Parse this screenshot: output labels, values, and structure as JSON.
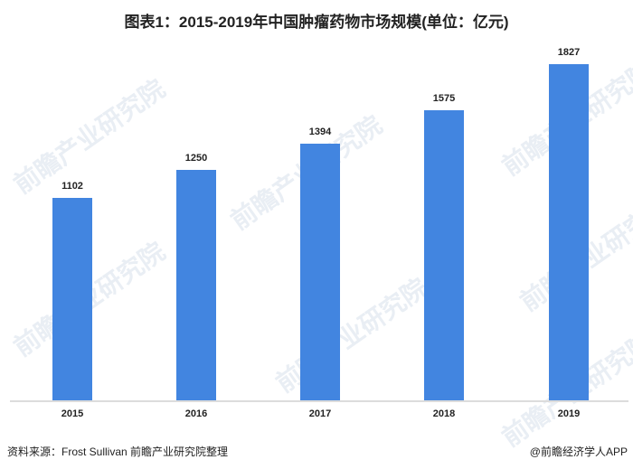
{
  "title": "图表1：2015-2019年中国肿瘤药物市场规模(单位：亿元)",
  "chart_data": {
    "type": "bar",
    "title": "图表1：2015-2019年中国肿瘤药物市场规模(单位：亿元)",
    "categories": [
      "2015",
      "2016",
      "2017",
      "2018",
      "2019"
    ],
    "values": [
      1102,
      1250,
      1394,
      1575,
      1827
    ],
    "xlabel": "",
    "ylabel": "亿元",
    "grid": false,
    "legend": null,
    "bar_color": "#4285e0",
    "data_labels": [
      "1102",
      "1250",
      "1394",
      "1575",
      "1827"
    ]
  },
  "footer": {
    "source": "资料来源：Frost Sullivan 前瞻产业研究院整理",
    "credit": "@前瞻经济学人APP"
  },
  "watermark": "前瞻产业研究院"
}
